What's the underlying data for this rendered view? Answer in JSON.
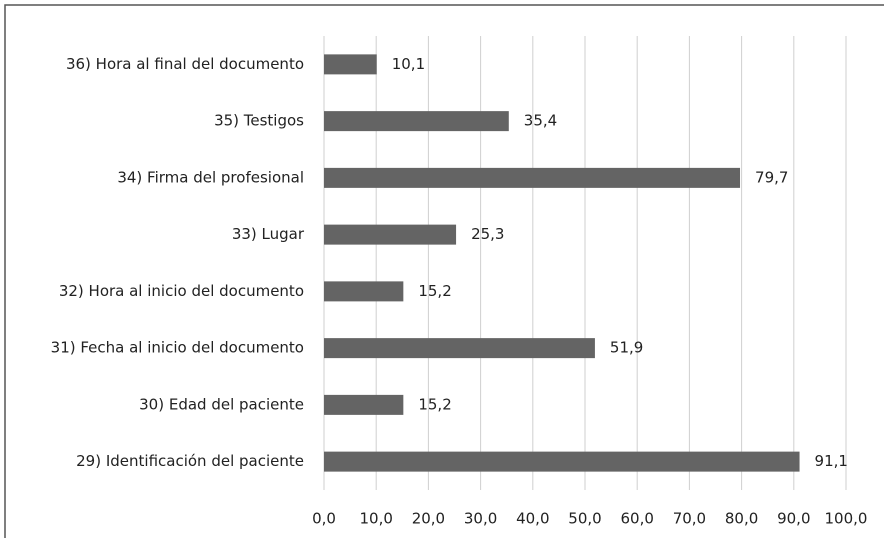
{
  "chart_data": {
    "type": "bar",
    "orientation": "horizontal",
    "categories": [
      "36) Hora al final del documento",
      "35) Testigos",
      "34) Firma del profesional",
      "33) Lugar",
      "32) Hora al inicio del documento",
      "31) Fecha al inicio del documento",
      "30) Edad del paciente",
      "29) Identificación del paciente"
    ],
    "values": [
      10.1,
      35.4,
      79.7,
      25.3,
      15.2,
      51.9,
      15.2,
      91.1
    ],
    "value_labels": [
      "10,1",
      "35,4",
      "79,7",
      "25,3",
      "15,2",
      "51,9",
      "15,2",
      "91,1"
    ],
    "color": "#646464",
    "xlim": [
      0,
      100
    ],
    "xticks": [
      {
        "value": 0,
        "label": "0,0"
      },
      {
        "value": 10,
        "label": "10,0"
      },
      {
        "value": 20,
        "label": "20,0"
      },
      {
        "value": 30,
        "label": "30,0"
      },
      {
        "value": 40,
        "label": "40,0"
      },
      {
        "value": 50,
        "label": "50,0"
      },
      {
        "value": 60,
        "label": "60,0"
      },
      {
        "value": 70,
        "label": "70,0"
      },
      {
        "value": 80,
        "label": "80,0"
      },
      {
        "value": 90,
        "label": "90,0"
      },
      {
        "value": 100,
        "label": "100,0"
      }
    ],
    "grid": true
  }
}
